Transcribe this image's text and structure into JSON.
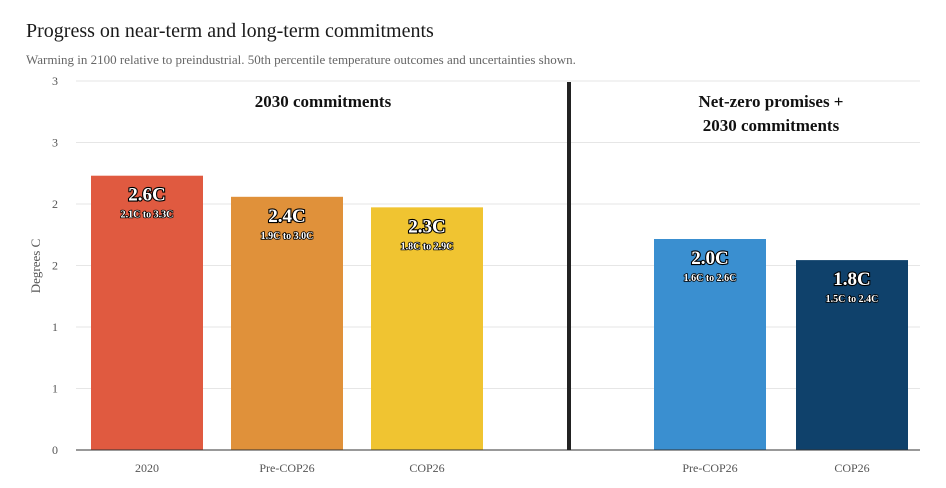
{
  "title": "Progress on near-term and long-term commitments",
  "subtitle": "Warming in 2100 relative to preindustrial. 50th percentile temperature outcomes and uncertainties shown.",
  "chart_data": {
    "type": "bar",
    "ylabel": "Degrees C",
    "ylim": [
      0,
      3
    ],
    "y_tick_labels": [
      "0",
      "1",
      "1",
      "2",
      "2",
      "3",
      "3"
    ],
    "grid": true,
    "groups": [
      {
        "label": "2030 commitments",
        "categories": [
          "2020",
          "Pre-COP26",
          "COP26"
        ]
      },
      {
        "label": "Net-zero promises + 2030 commitments",
        "label_lines": [
          "Net-zero promises +",
          "2030 commitments"
        ],
        "categories": [
          "Pre-COP26",
          "COP26"
        ]
      }
    ],
    "categories": [
      "2020",
      "Pre-COP26",
      "COP26",
      "Pre-COP26",
      "COP26"
    ],
    "values": [
      2.6,
      2.4,
      2.3,
      2.0,
      1.8
    ],
    "value_labels": [
      "2.6C",
      "2.4C",
      "2.3C",
      "2.0C",
      "1.8C"
    ],
    "range_labels": [
      "2.1C to 3.3C",
      "1.9C to 3.0C",
      "1.8C to 2.9C",
      "1.6C to 2.6C",
      "1.5C to 2.4C"
    ],
    "colors": [
      "#e05a40",
      "#e0913a",
      "#f0c431",
      "#3a8fd0",
      "#0f416b"
    ]
  }
}
